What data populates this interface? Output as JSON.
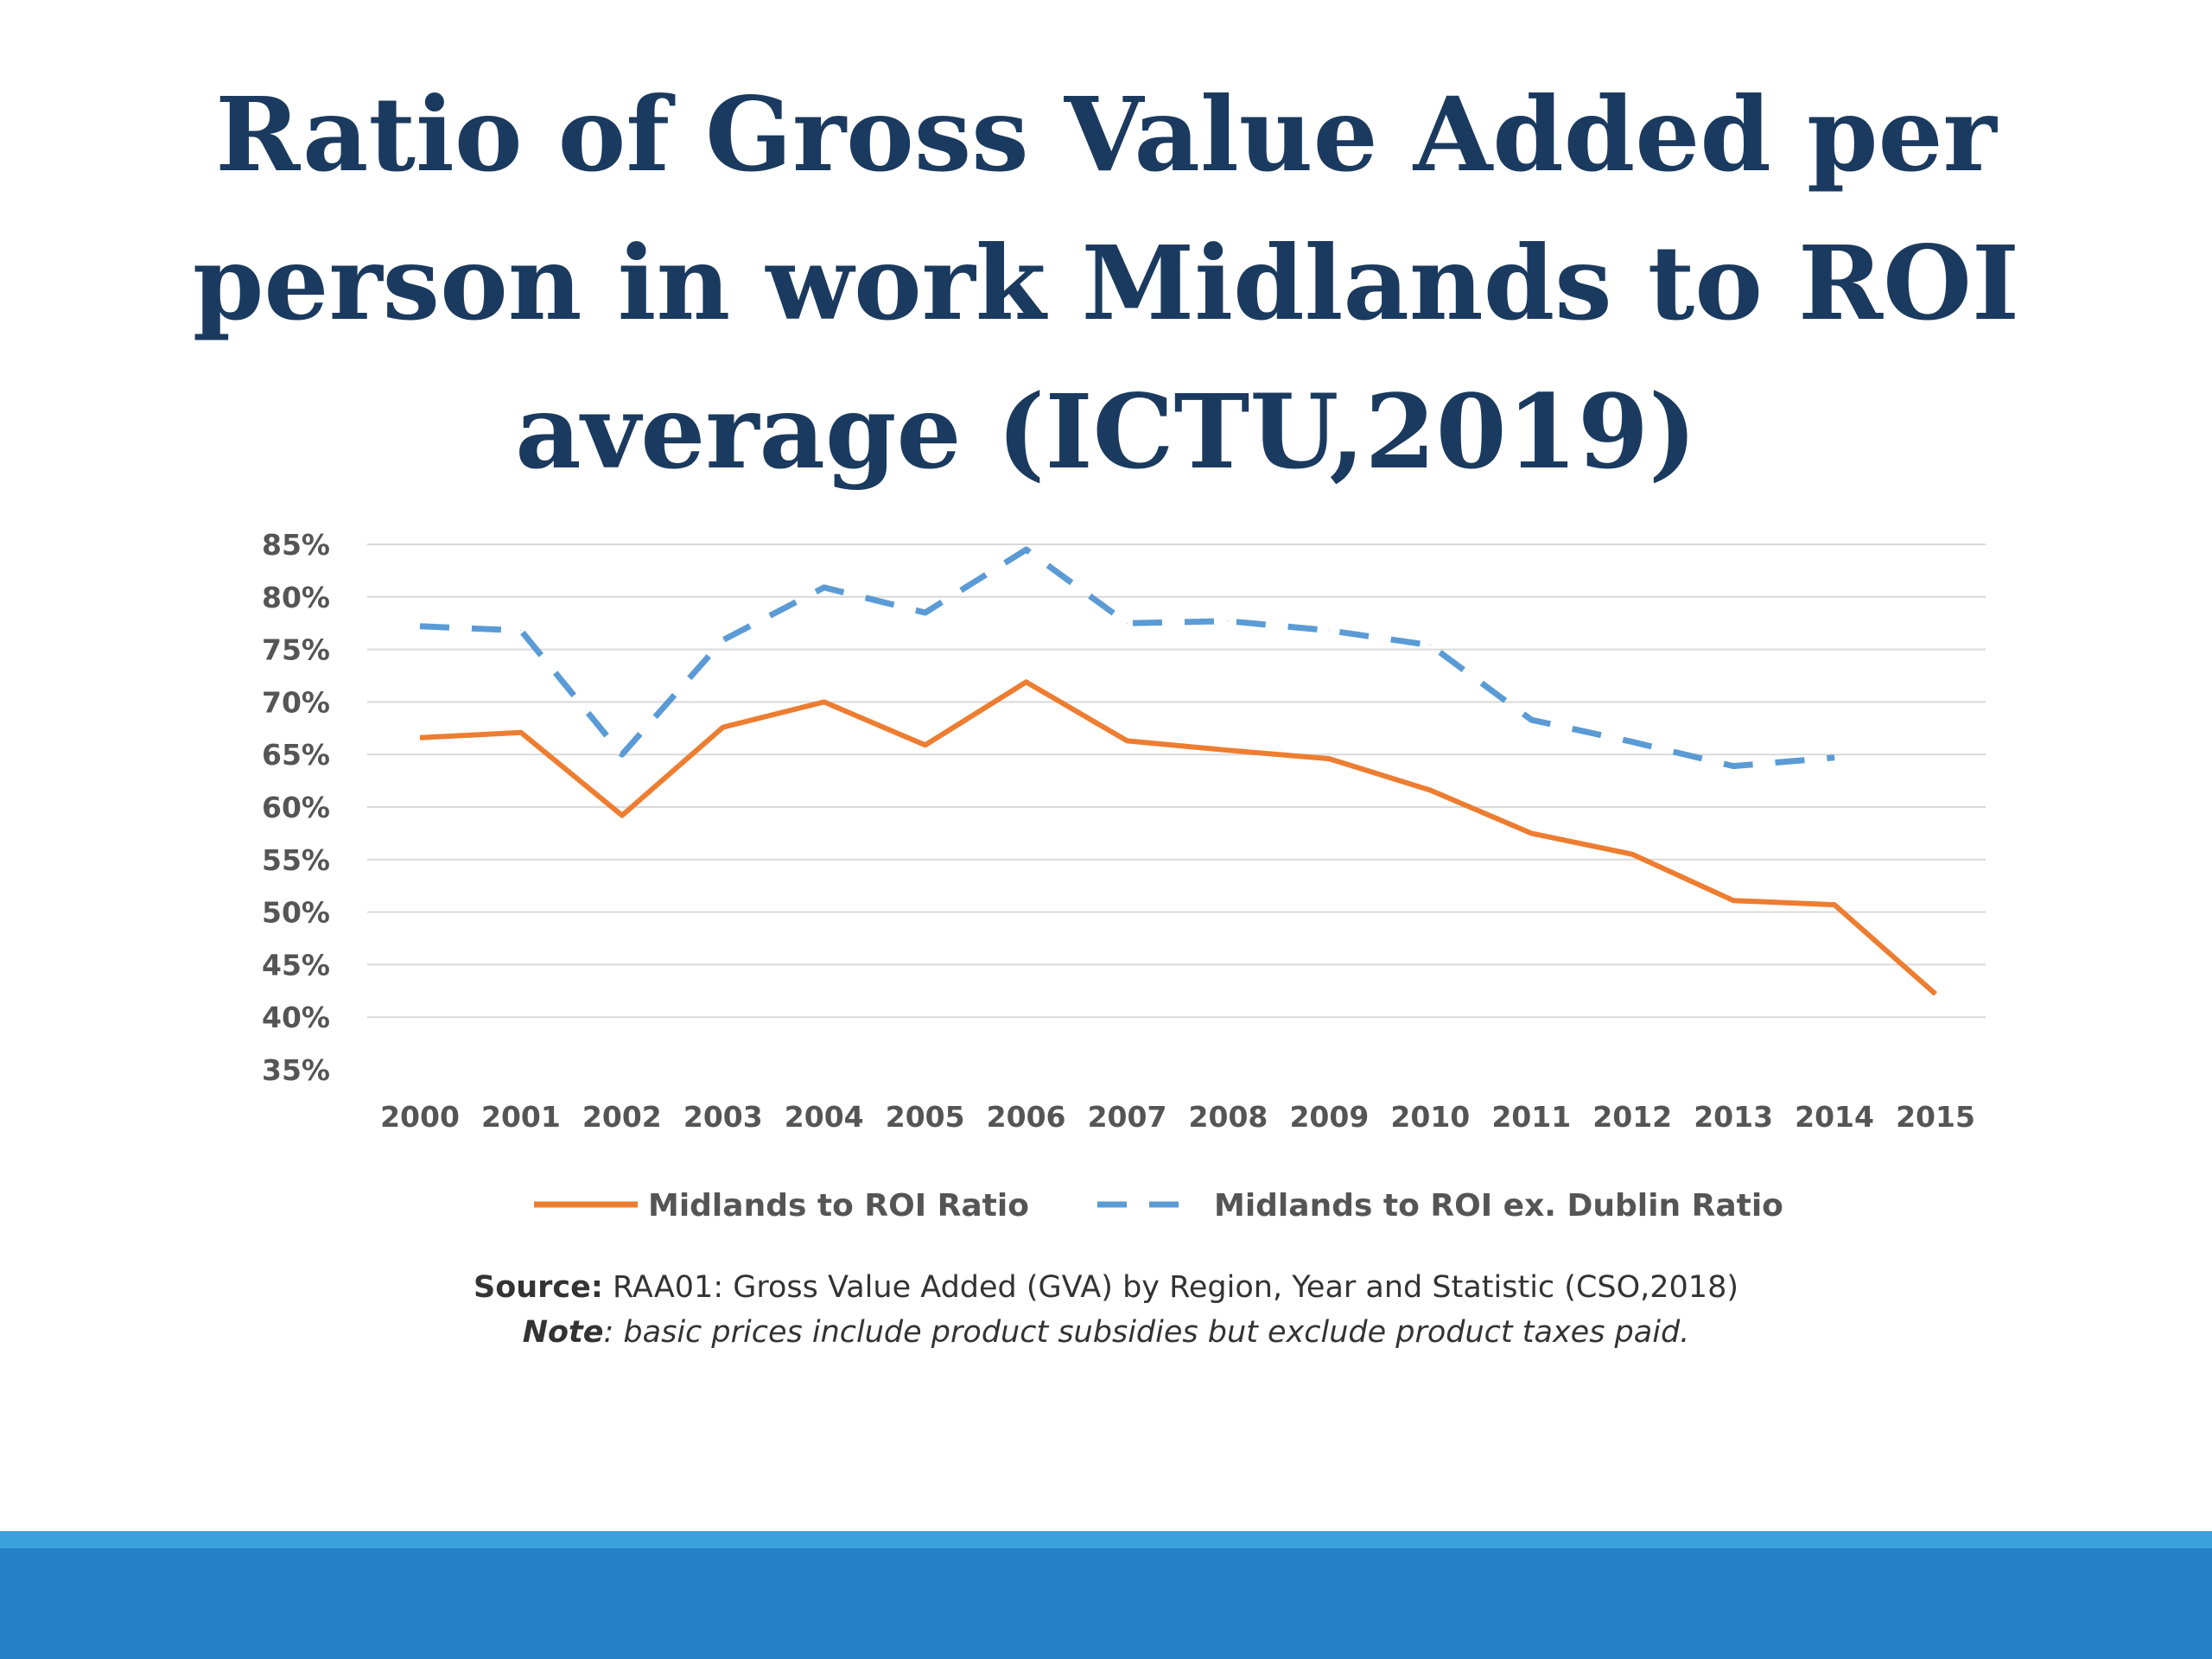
{
  "slide": {
    "title": "Ratio of Gross Value Added per person in work Midlands to ROI average (ICTU,2019)"
  },
  "source": {
    "source_label": "Source:",
    "source_text": " RAA01: Gross Value Added (GVA) by Region, Year and Statistic (CSO,2018)",
    "note_label": "Note",
    "note_text": ": basic prices include product subsidies but exclude product taxes paid."
  },
  "colors": {
    "title": "#1b3a5f",
    "series_solid": "#ed7d31",
    "series_dashed": "#5b9bd5",
    "footer_bar": "#2580c5",
    "footer_stripe": "#3aa0dc"
  },
  "chart_data": {
    "type": "line",
    "title": "",
    "xlabel": "",
    "ylabel": "",
    "x": [
      "2000",
      "2001",
      "2002",
      "2003",
      "2004",
      "2005",
      "2006",
      "2007",
      "2008",
      "2009",
      "2010",
      "2011",
      "2012",
      "2013",
      "2014",
      "2015"
    ],
    "ylim": [
      35,
      85
    ],
    "y_ticks": [
      35,
      40,
      45,
      50,
      55,
      60,
      65,
      70,
      75,
      80,
      85
    ],
    "y_tick_labels": [
      "35%",
      "40%",
      "45%",
      "50%",
      "55%",
      "60%",
      "65%",
      "70%",
      "75%",
      "80%",
      "85%"
    ],
    "grid": true,
    "legend_position": "bottom",
    "series": [
      {
        "name": "Midlands to ROI Ratio",
        "style": "solid",
        "color": "#ed7d31",
        "values": [
          66.6,
          67.1,
          59.2,
          67.6,
          70.0,
          65.9,
          71.9,
          66.3,
          65.4,
          64.6,
          61.6,
          57.5,
          55.5,
          51.1,
          50.7,
          42.2
        ]
      },
      {
        "name": "Midlands to ROI ex. Dublin Ratio",
        "style": "dashed",
        "color": "#5b9bd5",
        "values": [
          77.2,
          76.8,
          65.0,
          75.9,
          80.9,
          78.5,
          84.5,
          77.5,
          77.7,
          76.8,
          75.4,
          68.3,
          66.2,
          63.9,
          64.7,
          null
        ]
      }
    ]
  }
}
